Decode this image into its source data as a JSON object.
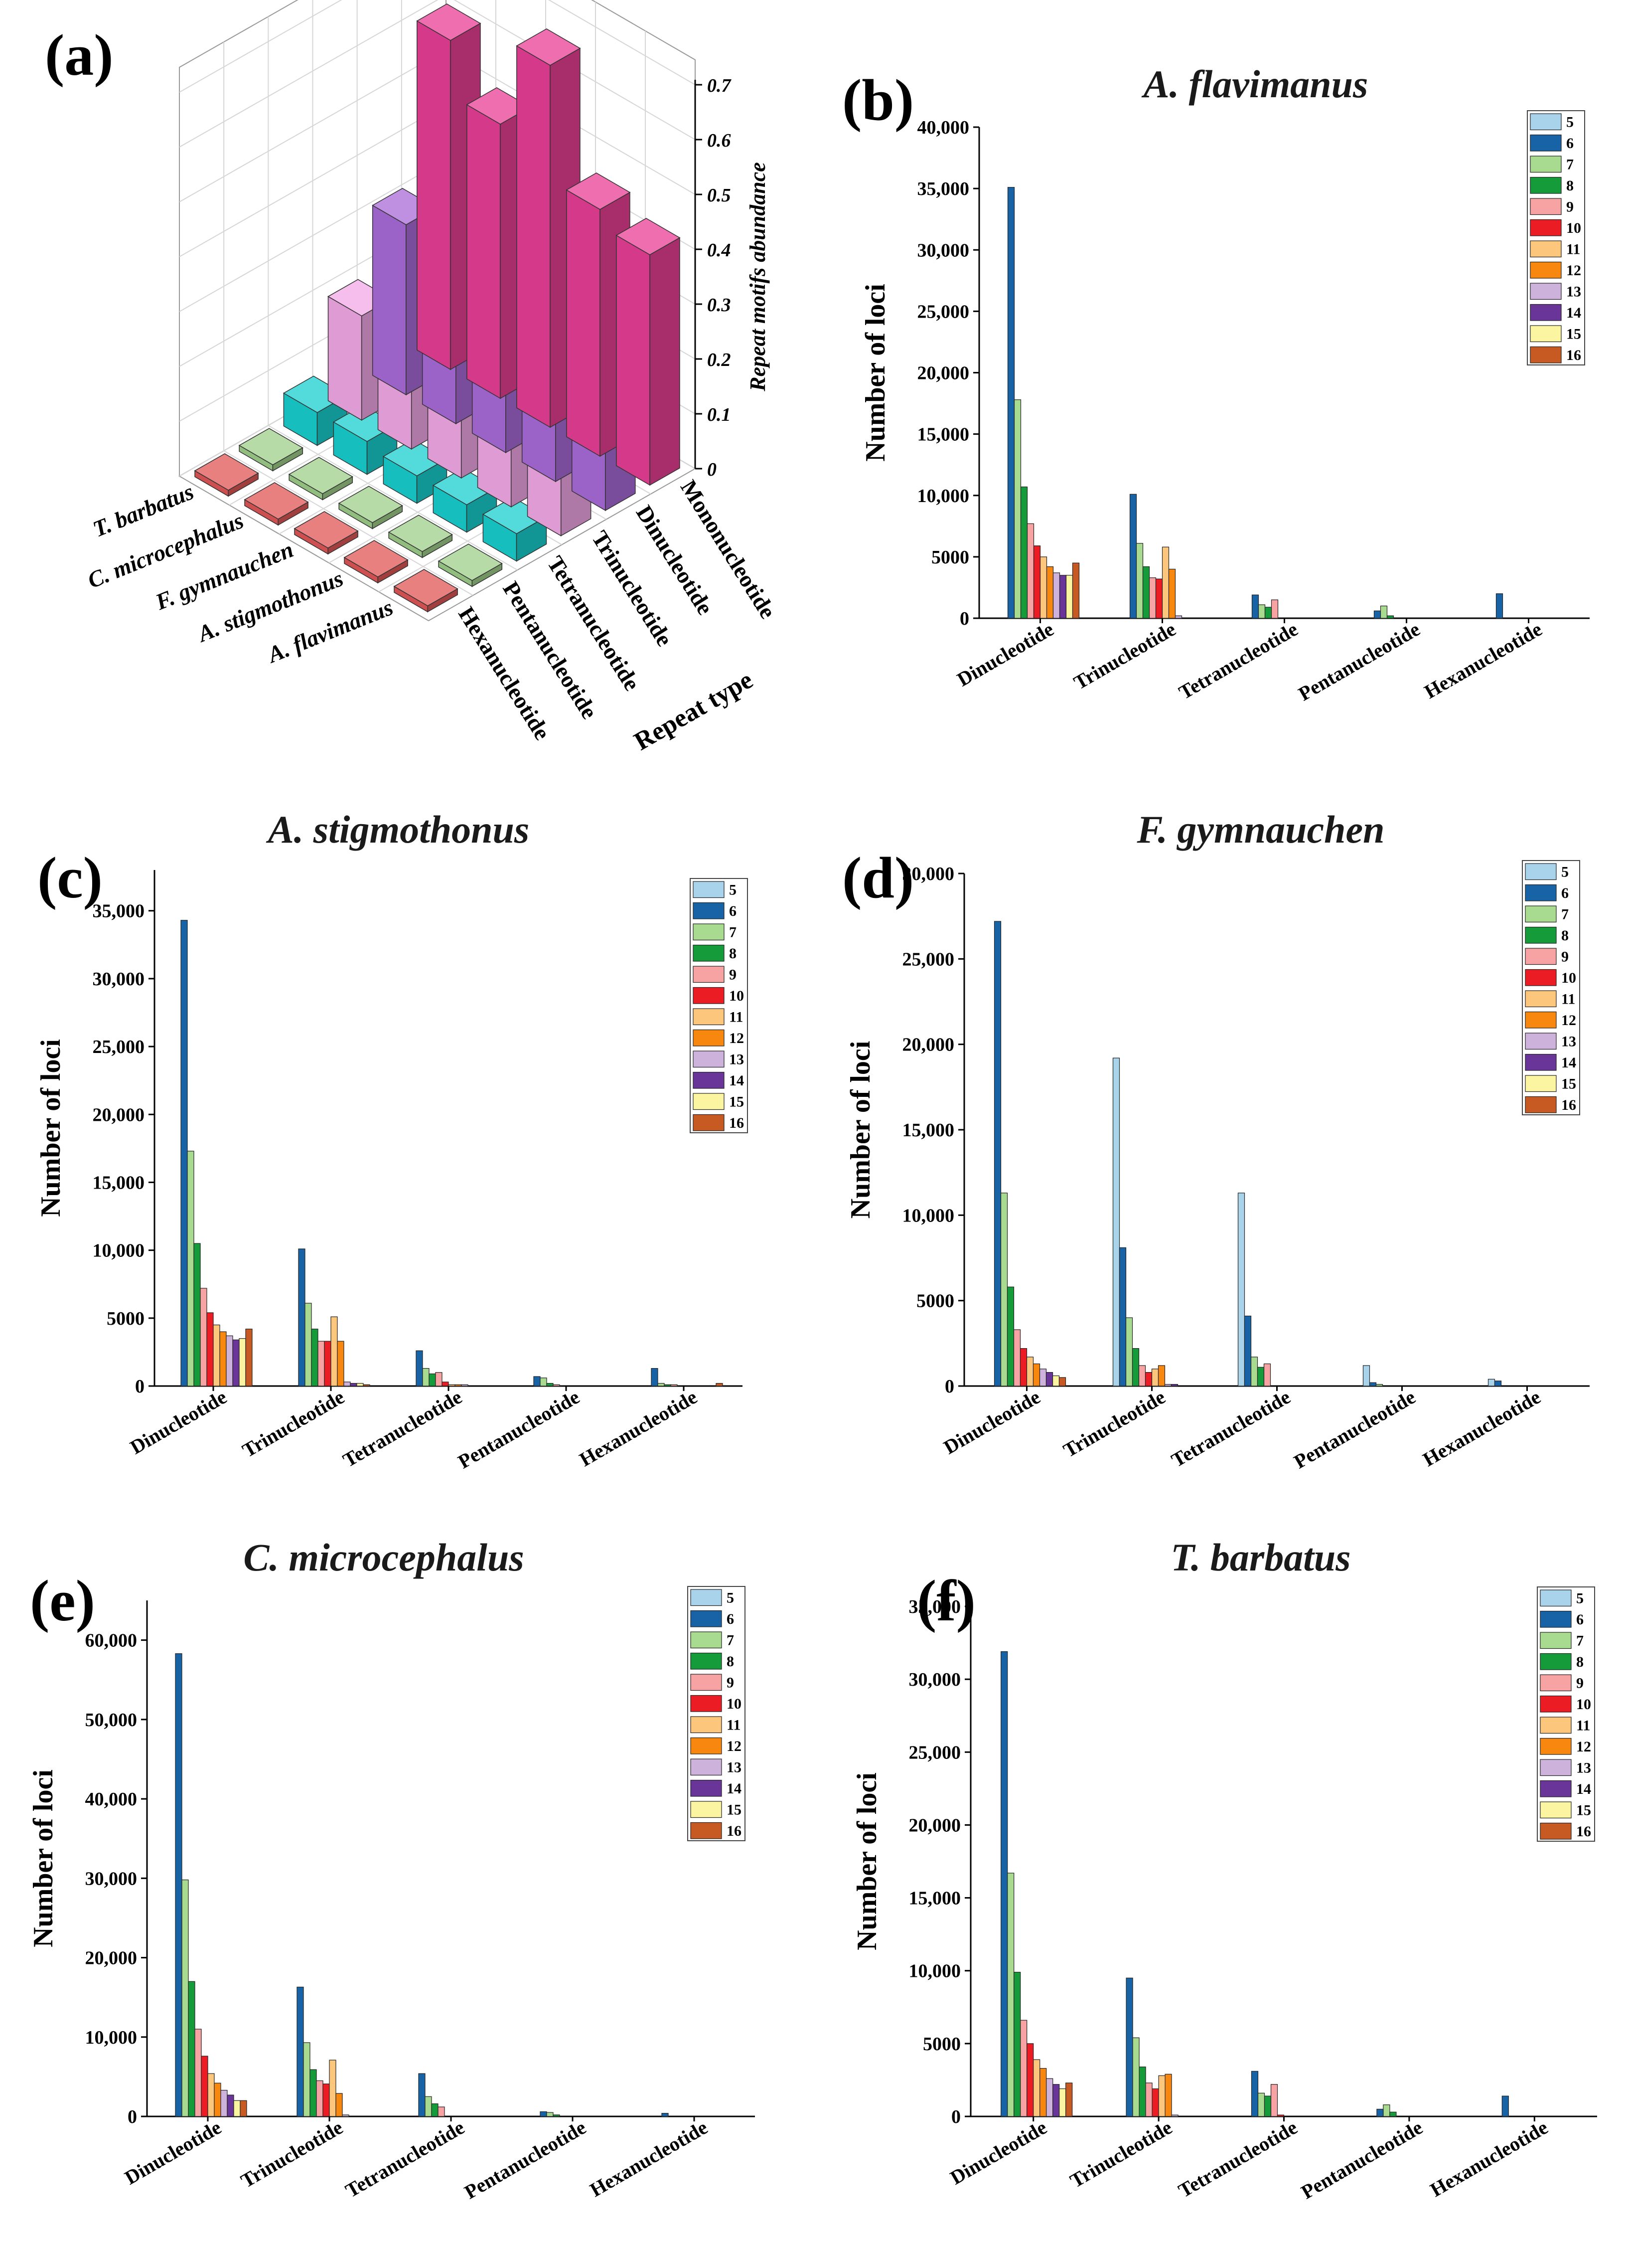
{
  "chart_data": [
    {
      "panel": "(a)",
      "type": "bar3d",
      "zlabel": "Repeat motifs abundance",
      "xlabel": "Repeat type",
      "species": [
        "T. barbatus",
        "C. microcephalus",
        "F. gymnauchen",
        "A. stigmothonus",
        "A. flavimanus"
      ],
      "repeat_types": [
        "Mononucleotide",
        "Dinucleotide",
        "Trinucleotide",
        "Tetranucleotide",
        "Pentanucleotide",
        "Hexanucleotide"
      ],
      "zticks": [
        "0",
        "0.1",
        "0.2",
        "0.3",
        "0.4",
        "0.5",
        "0.6",
        "0.7"
      ],
      "zlim": [
        0,
        0.7
      ],
      "colors": [
        "#e83e95",
        "#a96ad8",
        "#f2a8e6",
        "#19cfcf",
        "#9ecf8a",
        "#e05656"
      ],
      "values": [
        [
          0.6,
          0.31,
          0.19,
          0.06,
          0.008,
          0.005
        ],
        [
          0.5,
          0.31,
          0.17,
          0.06,
          0.008,
          0.005
        ],
        [
          0.66,
          0.16,
          0.13,
          0.05,
          0.008,
          0.005
        ],
        [
          0.45,
          0.33,
          0.12,
          0.05,
          0.008,
          0.005
        ],
        [
          0.42,
          0.32,
          0.14,
          0.05,
          0.01,
          0.005
        ]
      ]
    },
    {
      "panel": "(b)",
      "type": "bar",
      "title": "A. flavimanus",
      "ylabel": "Number of loci",
      "categories": [
        "Dinucleotide",
        "Trinucleotide",
        "Tetranucleotide",
        "Pentanucleotide",
        "Hexanucleotide"
      ],
      "ylim": [
        0,
        40000
      ],
      "yticks": [
        0,
        5000,
        10000,
        15000,
        20000,
        25000,
        30000,
        35000,
        40000
      ],
      "ytick_labels": [
        "0",
        "5000",
        "10,000",
        "15,000",
        "20,000",
        "25,000",
        "30,000",
        "35,000",
        "40,000"
      ],
      "series": [
        {
          "name": "5",
          "values": [
            0,
            0,
            0,
            0,
            0
          ]
        },
        {
          "name": "6",
          "values": [
            35100,
            10100,
            1900,
            600,
            2000
          ]
        },
        {
          "name": "7",
          "values": [
            17800,
            6100,
            1100,
            1000,
            0
          ]
        },
        {
          "name": "8",
          "values": [
            10700,
            4200,
            900,
            200,
            0
          ]
        },
        {
          "name": "9",
          "values": [
            7700,
            3300,
            1500,
            0,
            0
          ]
        },
        {
          "name": "10",
          "values": [
            5900,
            3200,
            0,
            0,
            0
          ]
        },
        {
          "name": "11",
          "values": [
            5000,
            5800,
            0,
            0,
            0
          ]
        },
        {
          "name": "12",
          "values": [
            4200,
            4000,
            0,
            0,
            0
          ]
        },
        {
          "name": "13",
          "values": [
            3700,
            200,
            0,
            0,
            0
          ]
        },
        {
          "name": "14",
          "values": [
            3500,
            0,
            0,
            0,
            0
          ]
        },
        {
          "name": "15",
          "values": [
            3500,
            0,
            0,
            0,
            0
          ]
        },
        {
          "name": "16",
          "values": [
            4500,
            0,
            0,
            0,
            0
          ]
        }
      ]
    },
    {
      "panel": "(c)",
      "type": "bar",
      "title": "A. stigmothonus",
      "ylabel": "Number of loci",
      "categories": [
        "Dinucleotide",
        "Trinucleotide",
        "Tetranucleotide",
        "Pentanucleotide",
        "Hexanucleotide"
      ],
      "ylim": [
        0,
        38000
      ],
      "yticks": [
        0,
        5000,
        10000,
        15000,
        20000,
        25000,
        30000,
        35000
      ],
      "ytick_labels": [
        "0",
        "5000",
        "10,000",
        "15,000",
        "20,000",
        "25,000",
        "30,000",
        "35,000"
      ],
      "series": [
        {
          "name": "5",
          "values": [
            0,
            0,
            0,
            0,
            0
          ]
        },
        {
          "name": "6",
          "values": [
            34300,
            10100,
            2600,
            700,
            1300
          ]
        },
        {
          "name": "7",
          "values": [
            17300,
            6100,
            1300,
            600,
            200
          ]
        },
        {
          "name": "8",
          "values": [
            10500,
            4200,
            900,
            200,
            100
          ]
        },
        {
          "name": "9",
          "values": [
            7200,
            3300,
            1000,
            100,
            100
          ]
        },
        {
          "name": "10",
          "values": [
            5400,
            3300,
            300,
            0,
            0
          ]
        },
        {
          "name": "11",
          "values": [
            4500,
            5100,
            100,
            0,
            0
          ]
        },
        {
          "name": "12",
          "values": [
            4000,
            3300,
            100,
            0,
            0
          ]
        },
        {
          "name": "13",
          "values": [
            3700,
            300,
            100,
            0,
            0
          ]
        },
        {
          "name": "14",
          "values": [
            3400,
            200,
            0,
            0,
            0
          ]
        },
        {
          "name": "15",
          "values": [
            3500,
            200,
            0,
            0,
            0
          ]
        },
        {
          "name": "16",
          "values": [
            4200,
            100,
            0,
            0,
            200
          ]
        }
      ]
    },
    {
      "panel": "(d)",
      "type": "bar",
      "title": "F. gymnauchen",
      "ylabel": "Number of loci",
      "categories": [
        "Dinucleotide",
        "Trinucleotide",
        "Tetranucleotide",
        "Pentanucleotide",
        "Hexanucleotide"
      ],
      "ylim": [
        0,
        30000
      ],
      "yticks": [
        0,
        5000,
        10000,
        15000,
        20000,
        25000,
        30000
      ],
      "ytick_labels": [
        "0",
        "5000",
        "10,000",
        "15,000",
        "20,000",
        "25,000",
        "30,000"
      ],
      "series": [
        {
          "name": "5",
          "values": [
            0,
            19200,
            11300,
            1200,
            400
          ]
        },
        {
          "name": "6",
          "values": [
            27200,
            8100,
            4100,
            200,
            300
          ]
        },
        {
          "name": "7",
          "values": [
            11300,
            4000,
            1700,
            100,
            0
          ]
        },
        {
          "name": "8",
          "values": [
            5800,
            2200,
            1100,
            0,
            0
          ]
        },
        {
          "name": "9",
          "values": [
            3300,
            1200,
            1300,
            0,
            0
          ]
        },
        {
          "name": "10",
          "values": [
            2200,
            800,
            0,
            0,
            0
          ]
        },
        {
          "name": "11",
          "values": [
            1700,
            1000,
            0,
            0,
            0
          ]
        },
        {
          "name": "12",
          "values": [
            1300,
            1200,
            0,
            0,
            0
          ]
        },
        {
          "name": "13",
          "values": [
            1000,
            100,
            0,
            0,
            0
          ]
        },
        {
          "name": "14",
          "values": [
            800,
            100,
            0,
            0,
            0
          ]
        },
        {
          "name": "15",
          "values": [
            600,
            0,
            0,
            0,
            0
          ]
        },
        {
          "name": "16",
          "values": [
            500,
            0,
            0,
            0,
            0
          ]
        }
      ]
    },
    {
      "panel": "(e)",
      "type": "bar",
      "title": "C. microcephalus",
      "ylabel": "Number of loci",
      "categories": [
        "Dinucleotide",
        "Trinucleotide",
        "Tetranucleotide",
        "Pentanucleotide",
        "Hexanucleotide"
      ],
      "ylim": [
        0,
        65000
      ],
      "yticks": [
        0,
        10000,
        20000,
        30000,
        40000,
        50000,
        60000
      ],
      "ytick_labels": [
        "0",
        "10,000",
        "20,000",
        "30,000",
        "40,000",
        "50,000",
        "60,000"
      ],
      "series": [
        {
          "name": "5",
          "values": [
            0,
            0,
            0,
            0,
            0
          ]
        },
        {
          "name": "6",
          "values": [
            58300,
            16300,
            5400,
            600,
            400
          ]
        },
        {
          "name": "7",
          "values": [
            29800,
            9300,
            2500,
            500,
            0
          ]
        },
        {
          "name": "8",
          "values": [
            17000,
            5900,
            1600,
            200,
            0
          ]
        },
        {
          "name": "9",
          "values": [
            11000,
            4500,
            1200,
            0,
            0
          ]
        },
        {
          "name": "10",
          "values": [
            7600,
            4100,
            0,
            0,
            0
          ]
        },
        {
          "name": "11",
          "values": [
            5400,
            7100,
            0,
            0,
            0
          ]
        },
        {
          "name": "12",
          "values": [
            4200,
            2900,
            0,
            0,
            0
          ]
        },
        {
          "name": "13",
          "values": [
            3300,
            200,
            0,
            0,
            0
          ]
        },
        {
          "name": "14",
          "values": [
            2700,
            0,
            0,
            0,
            0
          ]
        },
        {
          "name": "15",
          "values": [
            2000,
            0,
            0,
            0,
            0
          ]
        },
        {
          "name": "16",
          "values": [
            2000,
            0,
            0,
            0,
            0
          ]
        }
      ]
    },
    {
      "panel": "(f)",
      "type": "bar",
      "title": "T. barbatus",
      "ylabel": "Number of loci",
      "categories": [
        "Dinucleotide",
        "Trinucleotide",
        "Tetranucleotide",
        "Pentanucleotide",
        "Hexanucleotide"
      ],
      "ylim": [
        0,
        35000
      ],
      "yticks": [
        0,
        5000,
        10000,
        15000,
        20000,
        25000,
        30000,
        35000
      ],
      "ytick_labels": [
        "0",
        "5000",
        "10,000",
        "15,000",
        "20,000",
        "25,000",
        "30,000",
        "35,000"
      ],
      "series": [
        {
          "name": "5",
          "values": [
            0,
            0,
            0,
            0,
            0
          ]
        },
        {
          "name": "6",
          "values": [
            31900,
            9500,
            3100,
            500,
            1400
          ]
        },
        {
          "name": "7",
          "values": [
            16700,
            5400,
            1600,
            800,
            0
          ]
        },
        {
          "name": "8",
          "values": [
            9900,
            3400,
            1400,
            300,
            0
          ]
        },
        {
          "name": "9",
          "values": [
            6600,
            2300,
            2200,
            0,
            0
          ]
        },
        {
          "name": "10",
          "values": [
            5000,
            1900,
            100,
            0,
            0
          ]
        },
        {
          "name": "11",
          "values": [
            3900,
            2800,
            0,
            0,
            0
          ]
        },
        {
          "name": "12",
          "values": [
            3300,
            2900,
            0,
            0,
            0
          ]
        },
        {
          "name": "13",
          "values": [
            2600,
            100,
            0,
            0,
            0
          ]
        },
        {
          "name": "14",
          "values": [
            2200,
            0,
            0,
            0,
            0
          ]
        },
        {
          "name": "15",
          "values": [
            1900,
            0,
            0,
            0,
            0
          ]
        },
        {
          "name": "16",
          "values": [
            2300,
            0,
            0,
            0,
            0
          ]
        }
      ]
    }
  ],
  "series_colors": [
    "#a9d3ea",
    "#1763a6",
    "#a8db8f",
    "#169b3a",
    "#f7a3a3",
    "#ec1c24",
    "#fcc67d",
    "#f7870f",
    "#cdb3dc",
    "#6a3598",
    "#fbf5a1",
    "#c65a22"
  ]
}
